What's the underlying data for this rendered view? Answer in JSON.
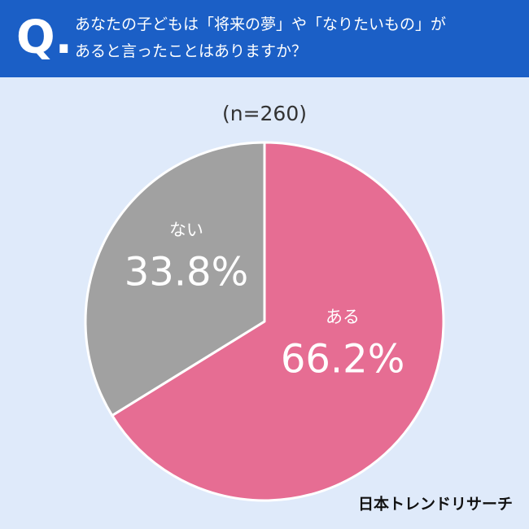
{
  "chart_data": {
    "type": "pie",
    "q_label": "Q.",
    "title": [
      "あなたの子どもは「将来の夢」や「なりたいもの」が",
      "あると言ったことはありますか？"
    ],
    "subtitle": "(n=260)",
    "categories": [
      "ある",
      "ない"
    ],
    "values": [
      66.2,
      33.8
    ],
    "value_labels": [
      "66.2%",
      "33.8%"
    ],
    "colors": [
      "#e66d93",
      "#a1a1a1"
    ],
    "source": "日本トレンドリサーチ"
  }
}
